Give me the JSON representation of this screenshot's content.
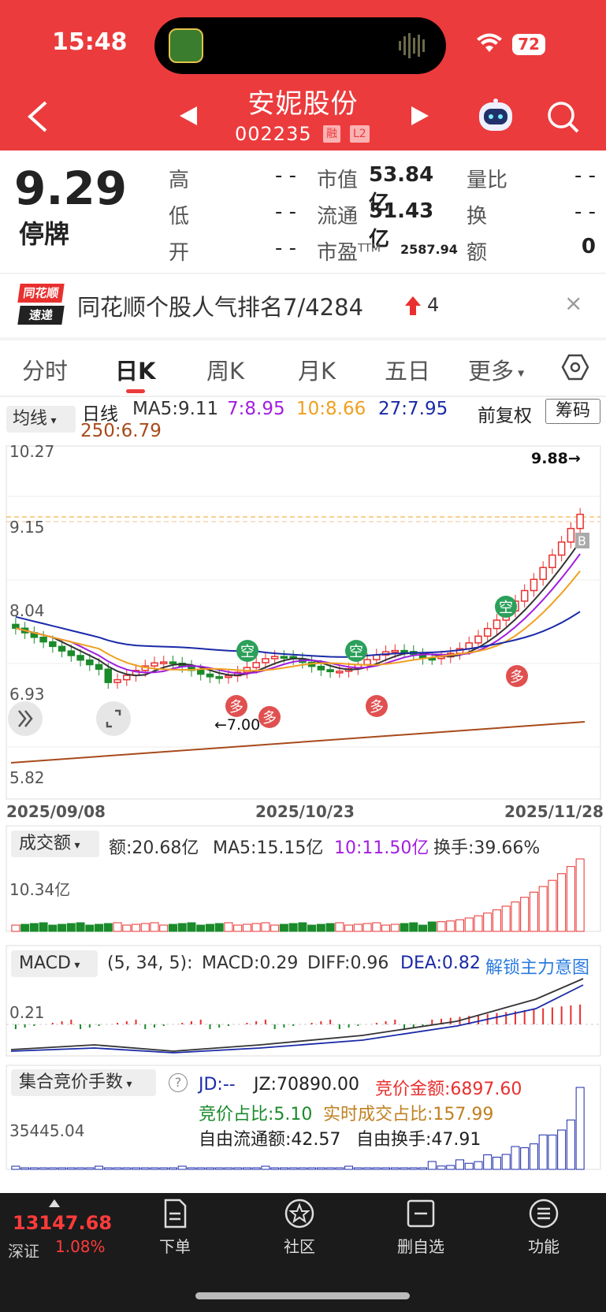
{
  "status": {
    "time": "15:48",
    "battery": "72"
  },
  "header": {
    "name": "安妮股份",
    "code": "002235",
    "tag1": "融",
    "tag2": "L2"
  },
  "quote": {
    "price": "9.29",
    "state": "停牌",
    "rows": [
      {
        "l1": "高",
        "v1": "- -",
        "l2": "市值",
        "v2": "53.84亿",
        "l3": "量比",
        "v3": "- -"
      },
      {
        "l1": "低",
        "v1": "- -",
        "l2": "流通",
        "v2": "51.43亿",
        "l3": "换",
        "v3": "- -"
      },
      {
        "l1": "开",
        "v1": "- -",
        "l2": "市盈",
        "l2sup": "TTM",
        "v2": "2587.94",
        "l3": "额",
        "v3": "0"
      }
    ]
  },
  "banner": {
    "logo_top": "同花顺",
    "logo_bottom": "速递",
    "text": "同花顺个股人气排名7/4284",
    "change": "4",
    "close": "×"
  },
  "tabs": [
    "分时",
    "日K",
    "周K",
    "月K",
    "五日",
    "更多"
  ],
  "ma_bar": {
    "select": "均线",
    "title": "日线",
    "ma5": "MA5:9.11",
    "ma7": "7:8.95",
    "ma10": "10:8.66",
    "ma27": "27:7.95",
    "ma250": "250:6.79",
    "fuquan": "前复权",
    "chouma": "筹码"
  },
  "colors": {
    "up": "#e8302e",
    "down": "#1a8a2a",
    "ma5": "#333333",
    "ma7": "#a21ee0",
    "ma10": "#f0a020",
    "ma27": "#1a2aa8",
    "ma250": "#a84a1a",
    "accent": "#ec3b3d"
  },
  "kline": {
    "axis": [
      "10.27",
      "9.15",
      "8.04",
      "6.93",
      "5.82"
    ],
    "max_label": "9.88→",
    "min_label": "←7.00",
    "dates": [
      "2025/09/08",
      "2025/10/23",
      "2025/11/28"
    ],
    "marks": {
      "kong": "空",
      "duo": "多",
      "buy": "B"
    }
  },
  "volume": {
    "select": "成交额",
    "amount": "额:20.68亿",
    "ma5": "MA5:15.15亿",
    "ma10": "10:11.50亿",
    "turnover": "换手:39.66%",
    "axis": "10.34亿"
  },
  "macd": {
    "select": "MACD",
    "params": "(5, 34, 5):",
    "macd": "MACD:0.29",
    "diff": "DIFF:0.96",
    "dea": "DEA:0.82",
    "unlock": "解锁主力意图",
    "axis": "0.21"
  },
  "auction": {
    "select": "集合竞价手数",
    "help": "?",
    "jd": "JD:--",
    "jz": "JZ:70890.00",
    "amount": "竞价金额:6897.60",
    "ratio": "竞价占比:5.10",
    "realtime": "实时成交占比:157.99",
    "free_float": "自由流通额:42.57",
    "free_turn": "自由换手:47.91",
    "axis": "35445.04"
  },
  "bottom": {
    "index_value": "13147.68",
    "index_name": "深证",
    "index_pct": "1.08%",
    "items": [
      "下单",
      "社区",
      "删自选",
      "功能"
    ]
  }
}
